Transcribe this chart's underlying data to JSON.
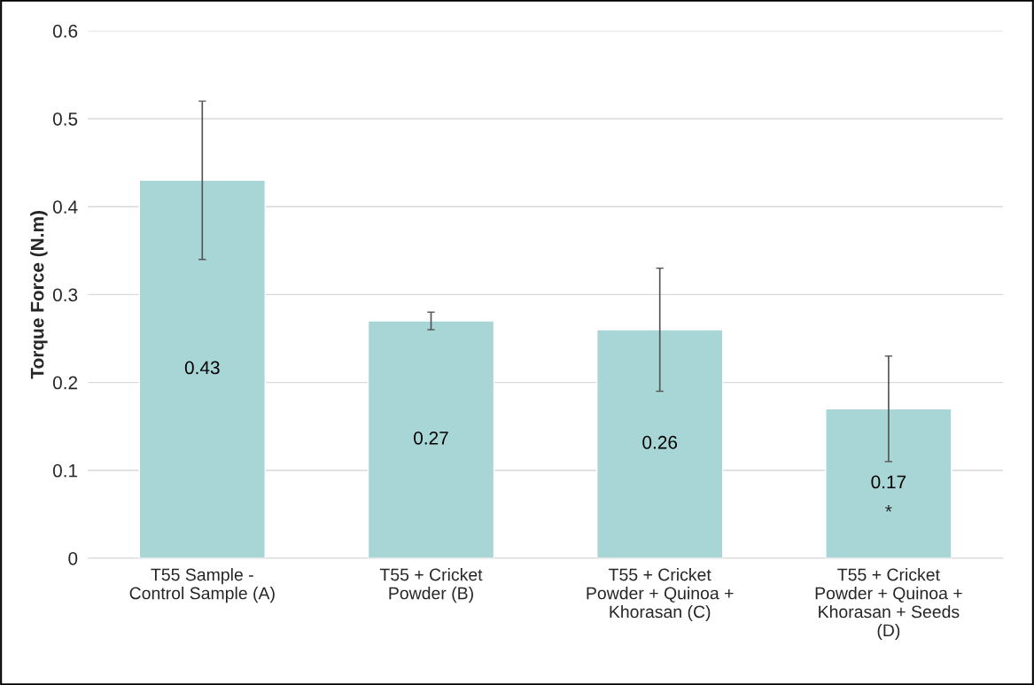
{
  "chart_data": {
    "type": "bar",
    "ylabel": "Torque Force (N.m)",
    "categories": [
      "T55 Sample -\nControl Sample (A)",
      "T55 + Cricket\nPowder (B)",
      "T55 + Cricket\nPowder + Quinoa +\nKhorasan (C)",
      "T55 + Cricket\nPowder + Quinoa +\nKhorasan + Seeds\n(D)"
    ],
    "values": [
      0.43,
      0.27,
      0.26,
      0.17
    ],
    "errors": [
      0.09,
      0.01,
      0.07,
      0.06
    ],
    "color": "#a8d5d5",
    "ylim": [
      0,
      0.6
    ],
    "yticks": [
      0,
      0.1,
      0.2,
      0.3,
      0.4,
      0.5,
      0.6
    ],
    "grid": "y",
    "data_labels": true,
    "annotations": [
      "*"
    ]
  }
}
